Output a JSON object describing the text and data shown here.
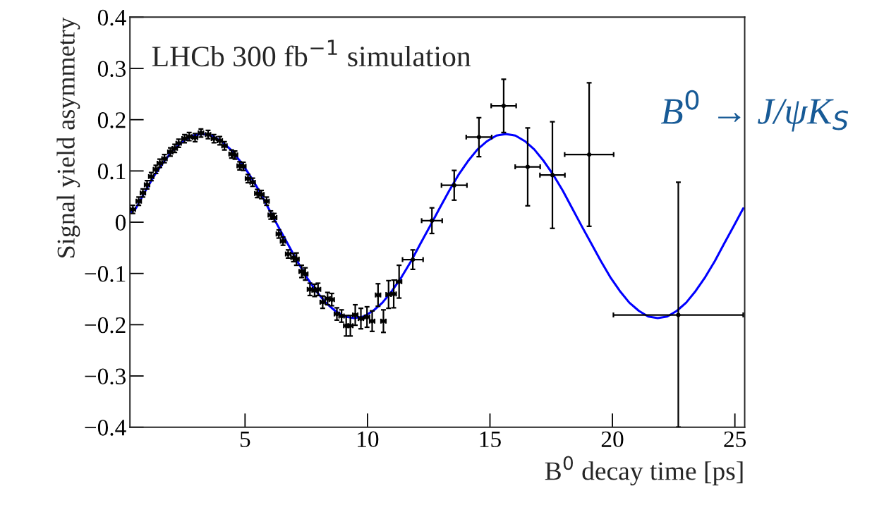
{
  "chart_data": {
    "type": "scatter",
    "xlabel": "B$^{0}$ decay time [ps]",
    "ylabel": "Signal yield asymmetry",
    "annotations": [
      "LHCb 300 fb$^{−1}$ simulation",
      "B$^{0}$ → J/ψK$_{S}$"
    ],
    "xlim": [
      0.3,
      25.4
    ],
    "xticks": [
      5,
      10,
      15,
      20,
      25
    ],
    "ylim": [
      -0.4,
      0.4
    ],
    "yticks": [
      {
        "value": -0.4,
        "label": "−0.4"
      },
      {
        "value": -0.3,
        "label": "−0.3"
      },
      {
        "value": -0.2,
        "label": "−0.2"
      },
      {
        "value": -0.1,
        "label": "−0.1"
      },
      0,
      0.1,
      0.2,
      0.3,
      0.4
    ],
    "series": [
      {
        "type": "scatter",
        "color": "#000000",
        "marker": "circle",
        "x": [
          0.42,
          0.66,
          0.83,
          1.0,
          1.17,
          1.36,
          1.52,
          1.71,
          1.95,
          2.13,
          2.29,
          2.53,
          2.72,
          2.96,
          3.2,
          3.49,
          3.73,
          3.97,
          4.16,
          4.45,
          4.59,
          4.78,
          4.93,
          5.12,
          5.31,
          5.5,
          5.67,
          5.88,
          6.05,
          6.19,
          6.38,
          6.55,
          6.76,
          6.98,
          7.1,
          7.31,
          7.46,
          7.65,
          7.84,
          7.98,
          8.17,
          8.37,
          8.54,
          8.75,
          8.94,
          9.13,
          9.3,
          9.5,
          9.73,
          9.98,
          10.19,
          10.43,
          10.65,
          10.86,
          11.07,
          11.29,
          11.85,
          12.63,
          13.54,
          14.55,
          15.56,
          16.54,
          17.55,
          19.05,
          22.69
        ],
        "values": [
          0.025,
          0.041,
          0.057,
          0.073,
          0.089,
          0.103,
          0.115,
          0.124,
          0.137,
          0.144,
          0.154,
          0.163,
          0.167,
          0.165,
          0.174,
          0.171,
          0.163,
          0.159,
          0.149,
          0.133,
          0.131,
          0.11,
          0.109,
          0.085,
          0.078,
          0.056,
          0.054,
          0.041,
          0.014,
          0.009,
          -0.023,
          -0.037,
          -0.062,
          -0.069,
          -0.072,
          -0.096,
          -0.101,
          -0.131,
          -0.133,
          -0.131,
          -0.156,
          -0.149,
          -0.151,
          -0.179,
          -0.183,
          -0.202,
          -0.202,
          -0.181,
          -0.188,
          -0.185,
          -0.193,
          -0.142,
          -0.193,
          -0.141,
          -0.14,
          -0.116,
          -0.073,
          0.003,
          0.072,
          0.166,
          0.227,
          0.108,
          0.092,
          0.132,
          -0.181
        ],
        "errors": [
          0.008,
          0.008,
          0.008,
          0.008,
          0.008,
          0.008,
          0.008,
          0.008,
          0.008,
          0.008,
          0.008,
          0.008,
          0.008,
          0.008,
          0.008,
          0.008,
          0.008,
          0.008,
          0.008,
          0.008,
          0.008,
          0.008,
          0.008,
          0.008,
          0.008,
          0.008,
          0.008,
          0.008,
          0.008,
          0.008,
          0.008,
          0.008,
          0.008,
          0.008,
          0.012,
          0.012,
          0.012,
          0.012,
          0.012,
          0.012,
          0.012,
          0.012,
          0.012,
          0.012,
          0.012,
          0.02,
          0.02,
          0.02,
          0.02,
          0.02,
          0.02,
          0.022,
          0.022,
          0.027,
          0.027,
          0.032,
          0.019,
          0.025,
          0.029,
          0.038,
          0.052,
          0.076,
          0.104,
          0.14,
          [
            -0.4,
            0.078
          ]
        ],
        "xerrors": [
          0.1,
          0.1,
          0.1,
          0.1,
          0.1,
          0.1,
          0.1,
          0.1,
          0.1,
          0.1,
          0.1,
          0.1,
          0.1,
          0.1,
          0.1,
          0.1,
          0.1,
          0.1,
          0.1,
          0.1,
          0.1,
          0.1,
          0.1,
          0.1,
          0.1,
          0.1,
          0.1,
          0.1,
          0.1,
          0.1,
          0.1,
          0.1,
          0.1,
          0.1,
          0.1,
          0.1,
          0.1,
          0.1,
          0.1,
          0.1,
          0.1,
          0.1,
          0.1,
          0.1,
          0.1,
          0.1,
          0.1,
          0.1,
          0.1,
          0.1,
          0.1,
          0.1,
          0.1,
          0.1,
          0.1,
          0.1,
          0.42,
          0.42,
          0.52,
          0.52,
          0.51,
          0.51,
          0.51,
          1.0,
          2.65
        ]
      },
      {
        "type": "line",
        "color": "#0000ff",
        "marker": "none",
        "x": [
          0.35,
          0.54,
          0.93,
          1.31,
          1.7,
          2.09,
          2.47,
          2.86,
          3.25,
          3.64,
          4.03,
          4.41,
          4.8,
          5.19,
          5.58,
          5.96,
          6.35,
          6.74,
          7.13,
          7.51,
          7.9,
          8.29,
          8.68,
          9.06,
          9.45,
          9.84,
          10.23,
          10.61,
          11.0,
          11.39,
          11.78,
          12.16,
          12.55,
          12.94,
          13.33,
          13.71,
          14.1,
          14.49,
          14.88,
          15.26,
          15.65,
          16.04,
          16.43,
          16.81,
          17.2,
          17.59,
          17.98,
          18.36,
          18.75,
          19.14,
          19.53,
          19.91,
          20.3,
          20.69,
          21.08,
          21.46,
          21.85,
          22.24,
          22.63,
          23.01,
          23.4,
          23.79,
          24.18,
          24.56,
          24.95,
          25.34
        ],
        "values": [
          0.02,
          0.027,
          0.061,
          0.092,
          0.119,
          0.142,
          0.158,
          0.169,
          0.172,
          0.169,
          0.158,
          0.142,
          0.119,
          0.092,
          0.061,
          0.027,
          -0.008,
          -0.042,
          -0.076,
          -0.107,
          -0.134,
          -0.157,
          -0.173,
          -0.184,
          -0.187,
          -0.184,
          -0.173,
          -0.157,
          -0.134,
          -0.107,
          -0.076,
          -0.042,
          -0.008,
          0.027,
          0.061,
          0.092,
          0.119,
          0.142,
          0.158,
          0.169,
          0.172,
          0.169,
          0.158,
          0.142,
          0.119,
          0.092,
          0.061,
          0.027,
          -0.008,
          -0.042,
          -0.076,
          -0.107,
          -0.134,
          -0.157,
          -0.173,
          -0.184,
          -0.187,
          -0.184,
          -0.173,
          -0.157,
          -0.134,
          -0.107,
          -0.076,
          -0.042,
          -0.008,
          0.027
        ]
      }
    ]
  }
}
